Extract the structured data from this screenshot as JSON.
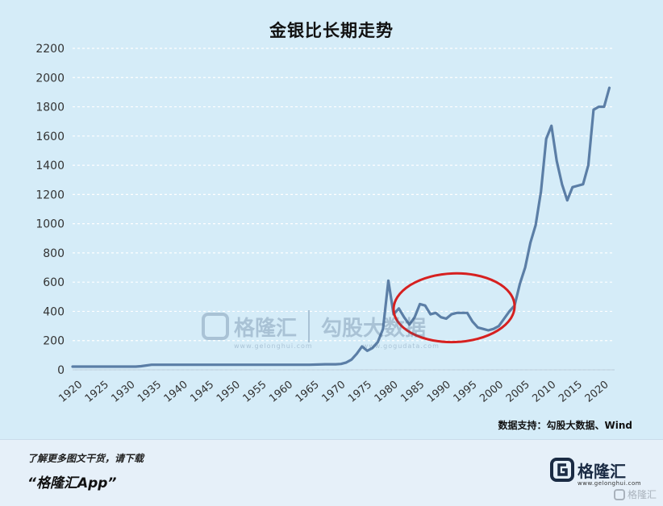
{
  "chart_data": {
    "type": "line",
    "title": "金银比长期走势",
    "xlabel": "",
    "ylabel": "",
    "xlim": [
      1920,
      2023
    ],
    "ylim": [
      0,
      2200
    ],
    "yticks": [
      0,
      200,
      400,
      600,
      800,
      1000,
      1200,
      1400,
      1600,
      1800,
      2000,
      2200
    ],
    "xticks": [
      1920,
      1925,
      1930,
      1935,
      1940,
      1945,
      1950,
      1955,
      1960,
      1965,
      1970,
      1975,
      1980,
      1985,
      1990,
      1995,
      2000,
      2005,
      2010,
      2015,
      2020
    ],
    "grid": true,
    "legend": "none",
    "series": [
      {
        "color": "#5b7ea6",
        "x": [
          1920,
          1925,
          1930,
          1932,
          1933,
          1935,
          1940,
          1945,
          1950,
          1955,
          1960,
          1965,
          1968,
          1970,
          1971,
          1972,
          1973,
          1974,
          1975,
          1976,
          1977,
          1978,
          1979,
          1980,
          1981,
          1982,
          1983,
          1984,
          1985,
          1986,
          1987,
          1988,
          1989,
          1990,
          1991,
          1992,
          1993,
          1994,
          1995,
          1996,
          1997,
          1998,
          1999,
          2000,
          2001,
          2002,
          2003,
          2004,
          2005,
          2006,
          2007,
          2008,
          2009,
          2010,
          2011,
          2012,
          2013,
          2014,
          2015,
          2016,
          2017,
          2018,
          2019,
          2020,
          2021,
          2022,
          2023
        ],
        "y": [
          22,
          22,
          22,
          22,
          25,
          35,
          35,
          35,
          35,
          35,
          35,
          35,
          38,
          38,
          40,
          50,
          70,
          110,
          160,
          130,
          150,
          190,
          280,
          610,
          380,
          420,
          360,
          310,
          360,
          450,
          440,
          380,
          390,
          360,
          350,
          380,
          390,
          390,
          390,
          330,
          290,
          280,
          270,
          280,
          300,
          350,
          400,
          440,
          590,
          700,
          870,
          990,
          1220,
          1580,
          1670,
          1430,
          1270,
          1160,
          1250,
          1260,
          1270,
          1400,
          1780,
          1800,
          1800,
          1930,
          null
        ]
      }
    ],
    "annotations": [
      {
        "type": "ellipse",
        "color": "#d62020",
        "x_range": [
          1981,
          2004
        ],
        "y_range": [
          190,
          660
        ]
      }
    ]
  },
  "source_note": "数据支持：勾股大数据、Wind",
  "watermark": {
    "brand": "格隆汇",
    "brand_url": "www.gelonghui.com",
    "partner": "勾股大数据",
    "partner_url": "www.gogudata.com"
  },
  "footer": {
    "promo_line": "了解更多图文干货，请下载",
    "promo_app": "“格隆汇App”",
    "logo_text": "格隆汇",
    "logo_url": "www.gelonghui.com",
    "corner_mark": "格隆汇"
  }
}
